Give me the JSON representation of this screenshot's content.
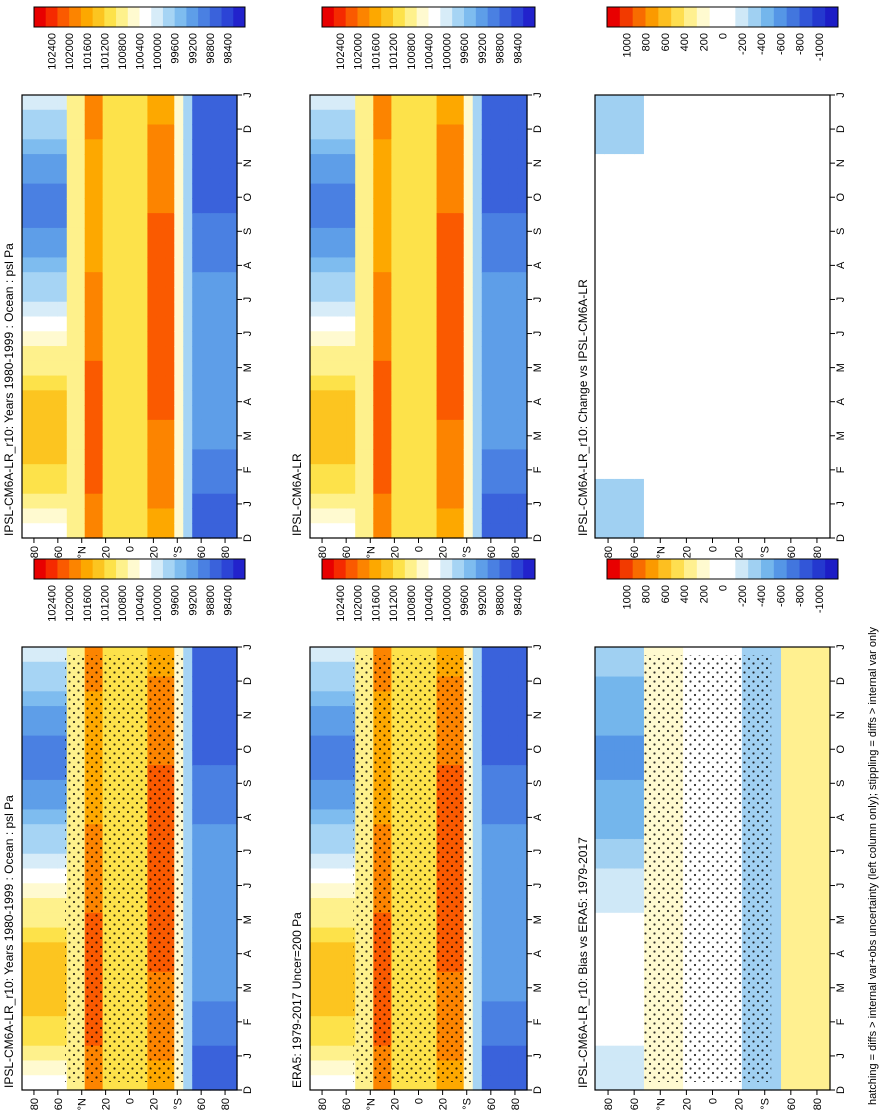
{
  "footer_note": "hatching = diffs > internal var+obs uncertainty (left column only); stippling = diffs > internal var only",
  "x_axis_ticks": [
    "D",
    "J",
    "F",
    "M",
    "A",
    "M",
    "J",
    "J",
    "A",
    "S",
    "O",
    "N",
    "D",
    "J"
  ],
  "y_axis_ticks": [
    "80",
    "60",
    "°N",
    "20",
    "0",
    "20",
    "°S",
    "60",
    "80"
  ],
  "colorbars": {
    "abs": {
      "labels": [
        "102400",
        "102000",
        "101600",
        "101200",
        "100800",
        "100400",
        "100000",
        "99600",
        "99200",
        "98800",
        "98400"
      ],
      "colors": [
        "#e80000",
        "#f52a00",
        "#fa5a00",
        "#fc8400",
        "#fda800",
        "#fcc520",
        "#fde24a",
        "#fef18c",
        "#fffad0",
        "#ffffff",
        "#d7ecf8",
        "#a6d4f4",
        "#7ebcef",
        "#5e9ee8",
        "#4a80e2",
        "#3a62db",
        "#2c44d6",
        "#2222cc"
      ]
    },
    "diff": {
      "labels": [
        "1000",
        "800",
        "600",
        "400",
        "200",
        "0",
        "-200",
        "-400",
        "-600",
        "-800",
        "-1000"
      ],
      "colors": [
        "#e80000",
        "#f23a00",
        "#f86c00",
        "#fb9a00",
        "#fdbf20",
        "#fede50",
        "#fff090",
        "#fffad0",
        "#ffffff",
        "#ffffff",
        "#cfe8f7",
        "#a0d0f2",
        "#74b6ec",
        "#5596e6",
        "#4276de",
        "#3256d8",
        "#2438cf",
        "#1c1cc6"
      ]
    }
  },
  "panels": [
    {
      "id": "p1",
      "title": "IPSL-CM6A-LR_r10: Years 1980-1999 : Ocean : psl Pa",
      "scale": "abs",
      "stipple": true
    },
    {
      "id": "p2",
      "title": "IPSL-CM6A-LR_r10: Years 1980-1999 : Ocean : psl Pa",
      "scale": "abs",
      "stipple": false
    },
    {
      "id": "p3",
      "title": "ERA5: 1979-2017 Uncer=200 Pa",
      "scale": "abs",
      "stipple": true
    },
    {
      "id": "p4",
      "title": "IPSL-CM6A-LR",
      "scale": "abs",
      "stipple": false
    },
    {
      "id": "p5",
      "title": "IPSL-CM6A-LR_r10: Bias vs ERA5: 1979-2017",
      "scale": "diff",
      "stipple": true
    },
    {
      "id": "p6",
      "title": "IPSL-CM6A-LR_r10: Change vs IPSL-CM6A-LR",
      "scale": "diff",
      "stipple": false
    }
  ],
  "chart_data": [
    {
      "type": "heatmap",
      "title": "IPSL-CM6A-LR_r10: Years 1980-1999 : Ocean : psl Pa",
      "x": [
        "D",
        "J",
        "F",
        "M",
        "A",
        "M",
        "J",
        "J",
        "A",
        "S",
        "O",
        "N",
        "D",
        "J"
      ],
      "y_labels": [
        "80",
        "60",
        "°N",
        "20",
        "0",
        "20",
        "°S",
        "60",
        "80"
      ],
      "colorbar": [
        "102400",
        "102000",
        "101600",
        "101200",
        "100800",
        "100400",
        "100000",
        "99600",
        "99200",
        "98800",
        "98400"
      ]
    },
    {
      "type": "heatmap",
      "title": "IPSL-CM6A-LR_r10: Years 1980-1999 : Ocean : psl Pa",
      "x": [
        "D",
        "J",
        "F",
        "M",
        "A",
        "M",
        "J",
        "J",
        "A",
        "S",
        "O",
        "N",
        "D",
        "J"
      ],
      "y_labels": [
        "80",
        "60",
        "°N",
        "20",
        "0",
        "20",
        "°S",
        "60",
        "80"
      ],
      "colorbar": [
        "102400",
        "102000",
        "101600",
        "101200",
        "100800",
        "100400",
        "100000",
        "99600",
        "99200",
        "98800",
        "98400"
      ]
    },
    {
      "type": "heatmap",
      "title": "ERA5: 1979-2017 Uncer=200 Pa",
      "x": [
        "D",
        "J",
        "F",
        "M",
        "A",
        "M",
        "J",
        "J",
        "A",
        "S",
        "O",
        "N",
        "D",
        "J"
      ],
      "y_labels": [
        "80",
        "60",
        "°N",
        "20",
        "0",
        "20",
        "°S",
        "60",
        "80"
      ],
      "colorbar": [
        "102400",
        "102000",
        "101600",
        "101200",
        "100800",
        "100400",
        "100000",
        "99600",
        "99200",
        "98800",
        "98400"
      ]
    },
    {
      "type": "heatmap",
      "title": "IPSL-CM6A-LR",
      "x": [
        "D",
        "J",
        "F",
        "M",
        "A",
        "M",
        "J",
        "J",
        "A",
        "S",
        "O",
        "N",
        "D",
        "J"
      ],
      "y_labels": [
        "80",
        "60",
        "°N",
        "20",
        "0",
        "20",
        "°S",
        "60",
        "80"
      ],
      "colorbar": [
        "102400",
        "102000",
        "101600",
        "101200",
        "100800",
        "100400",
        "100000",
        "99600",
        "99200",
        "98800",
        "98400"
      ]
    },
    {
      "type": "heatmap",
      "title": "IPSL-CM6A-LR_r10: Bias vs ERA5: 1979-2017",
      "x": [
        "D",
        "J",
        "F",
        "M",
        "A",
        "M",
        "J",
        "J",
        "A",
        "S",
        "O",
        "N",
        "D",
        "J"
      ],
      "y_labels": [
        "80",
        "60",
        "°N",
        "20",
        "0",
        "20",
        "°S",
        "60",
        "80"
      ],
      "colorbar": [
        "1000",
        "800",
        "600",
        "400",
        "200",
        "0",
        "-200",
        "-400",
        "-600",
        "-800",
        "-1000"
      ]
    },
    {
      "type": "heatmap",
      "title": "IPSL-CM6A-LR_r10: Change vs IPSL-CM6A-LR",
      "x": [
        "D",
        "J",
        "F",
        "M",
        "A",
        "M",
        "J",
        "J",
        "A",
        "S",
        "O",
        "N",
        "D",
        "J"
      ],
      "y_labels": [
        "80",
        "60",
        "°N",
        "20",
        "0",
        "20",
        "°S",
        "60",
        "80"
      ],
      "colorbar": [
        "1000",
        "800",
        "600",
        "400",
        "200",
        "0",
        "-200",
        "-400",
        "-600",
        "-800",
        "-1000"
      ]
    }
  ]
}
